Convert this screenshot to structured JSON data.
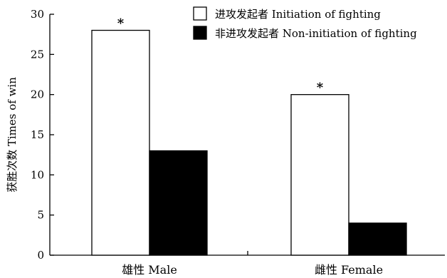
{
  "chart_data": {
    "type": "bar",
    "categories": [
      "雄性 Male",
      "雌性 Female"
    ],
    "series": [
      {
        "name": "进攻发起者 Initiation of fighting",
        "values": [
          28,
          20
        ],
        "color": "#ffffff"
      },
      {
        "name": "非进攻发起者 Non-initiation of fighting",
        "values": [
          13,
          4
        ],
        "color": "#000000"
      }
    ],
    "ylabel": "获胜次数 Times of win",
    "xlabel": "",
    "ylim": [
      0,
      30
    ],
    "yticks": [
      0,
      5,
      10,
      15,
      20,
      25,
      30
    ],
    "annotations": [
      "*",
      "*"
    ],
    "legend_position": "top-right",
    "grid": false
  }
}
